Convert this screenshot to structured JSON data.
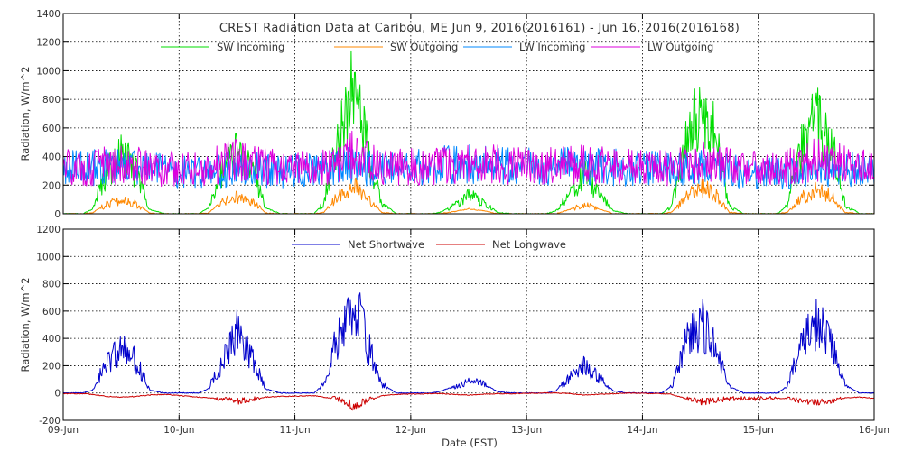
{
  "chart_data": [
    {
      "type": "line",
      "title": "CREST Radiation Data at Caribou, ME   Jun  9, 2016(2016161) - Jun 16, 2016(2016168)",
      "xlabel": "",
      "ylabel": "Radiation, W/m^2",
      "xlim": [
        "2016-06-09",
        "2016-06-16"
      ],
      "ylim": [
        0,
        1400
      ],
      "yticks": [
        "0",
        "200",
        "400",
        "600",
        "800",
        "1000",
        "1200",
        "1400"
      ],
      "xticks": [],
      "grid": true,
      "legend": "top",
      "x": [
        "2016-06-09 00:00",
        "2016-06-09 04:00",
        "2016-06-09 06:00",
        "2016-06-09 09:00",
        "2016-06-09 12:00",
        "2016-06-09 15:00",
        "2016-06-09 18:00",
        "2016-06-09 21:00",
        "2016-06-10 04:00",
        "2016-06-10 06:00",
        "2016-06-10 09:00",
        "2016-06-10 12:00",
        "2016-06-10 15:00",
        "2016-06-10 18:00",
        "2016-06-10 21:00",
        "2016-06-11 04:00",
        "2016-06-11 06:00",
        "2016-06-11 09:00",
        "2016-06-11 12:00",
        "2016-06-11 15:00",
        "2016-06-11 18:00",
        "2016-06-11 21:00",
        "2016-06-12 04:00",
        "2016-06-12 06:00",
        "2016-06-12 09:00",
        "2016-06-12 12:00",
        "2016-06-12 15:00",
        "2016-06-12 18:00",
        "2016-06-12 21:00",
        "2016-06-13 04:00",
        "2016-06-13 06:00",
        "2016-06-13 09:00",
        "2016-06-13 12:00",
        "2016-06-13 15:00",
        "2016-06-13 18:00",
        "2016-06-13 21:00",
        "2016-06-14 04:00",
        "2016-06-14 06:00",
        "2016-06-14 09:00",
        "2016-06-14 12:00",
        "2016-06-14 15:00",
        "2016-06-14 18:00",
        "2016-06-14 21:00",
        "2016-06-15 04:00",
        "2016-06-15 06:00",
        "2016-06-15 09:00",
        "2016-06-15 12:00",
        "2016-06-15 15:00",
        "2016-06-15 18:00",
        "2016-06-15 21:00",
        "2016-06-16 00:00"
      ],
      "series": [
        {
          "name": "SW Incoming",
          "color": "#00dd00",
          "values": [
            0,
            0,
            30,
            300,
            440,
            330,
            30,
            0,
            0,
            40,
            320,
            470,
            370,
            40,
            0,
            0,
            80,
            600,
            940,
            500,
            80,
            0,
            0,
            10,
            60,
            140,
            90,
            10,
            0,
            0,
            20,
            150,
            300,
            150,
            20,
            0,
            0,
            60,
            500,
            830,
            600,
            60,
            0,
            0,
            60,
            500,
            700,
            550,
            70,
            0,
            0
          ]
        },
        {
          "name": "SW Outgoing",
          "color": "#ff8800",
          "values": [
            0,
            0,
            5,
            70,
            100,
            75,
            5,
            0,
            0,
            5,
            85,
            125,
            100,
            5,
            0,
            0,
            10,
            130,
            220,
            120,
            10,
            0,
            0,
            0,
            15,
            35,
            20,
            0,
            0,
            0,
            0,
            30,
            70,
            35,
            0,
            0,
            0,
            10,
            120,
            200,
            150,
            10,
            0,
            0,
            10,
            120,
            175,
            140,
            10,
            0,
            0
          ]
        },
        {
          "name": "LW Incoming",
          "color": "#0088ff",
          "values": [
            345,
            345,
            345,
            350,
            360,
            355,
            345,
            330,
            310,
            305,
            330,
            345,
            340,
            330,
            320,
            330,
            335,
            350,
            380,
            350,
            345,
            345,
            360,
            365,
            370,
            375,
            375,
            370,
            365,
            360,
            360,
            360,
            360,
            355,
            355,
            350,
            340,
            335,
            340,
            350,
            345,
            330,
            300,
            305,
            310,
            330,
            350,
            345,
            340,
            330,
            300
          ]
        },
        {
          "name": "LW Outgoing",
          "color": "#dd00dd",
          "values": [
            350,
            345,
            345,
            365,
            380,
            370,
            350,
            340,
            340,
            340,
            380,
            410,
            395,
            360,
            345,
            345,
            350,
            400,
            455,
            410,
            360,
            355,
            360,
            360,
            370,
            385,
            380,
            370,
            365,
            360,
            360,
            365,
            375,
            370,
            360,
            350,
            345,
            345,
            370,
            400,
            395,
            370,
            345,
            345,
            350,
            380,
            410,
            400,
            370,
            350,
            340
          ]
        }
      ]
    },
    {
      "type": "line",
      "title": "",
      "xlabel": "Date (EST)",
      "ylabel": "Radiation, W/m^2",
      "xlim": [
        "2016-06-09",
        "2016-06-16"
      ],
      "ylim": [
        -200,
        1200
      ],
      "yticks": [
        "-200",
        "0",
        "200",
        "400",
        "600",
        "800",
        "1000",
        "1200"
      ],
      "xticks": [
        "09-Jun",
        "10-Jun",
        "11-Jun",
        "12-Jun",
        "13-Jun",
        "14-Jun",
        "15-Jun",
        "16-Jun"
      ],
      "grid": true,
      "legend": "top",
      "x": [
        "2016-06-09 00:00",
        "2016-06-09 04:00",
        "2016-06-09 06:00",
        "2016-06-09 09:00",
        "2016-06-09 12:00",
        "2016-06-09 15:00",
        "2016-06-09 18:00",
        "2016-06-09 21:00",
        "2016-06-10 04:00",
        "2016-06-10 06:00",
        "2016-06-10 09:00",
        "2016-06-10 12:00",
        "2016-06-10 15:00",
        "2016-06-10 18:00",
        "2016-06-10 21:00",
        "2016-06-11 04:00",
        "2016-06-11 06:00",
        "2016-06-11 09:00",
        "2016-06-11 12:00",
        "2016-06-11 15:00",
        "2016-06-11 18:00",
        "2016-06-11 21:00",
        "2016-06-12 04:00",
        "2016-06-12 06:00",
        "2016-06-12 09:00",
        "2016-06-12 12:00",
        "2016-06-12 15:00",
        "2016-06-12 18:00",
        "2016-06-12 21:00",
        "2016-06-13 04:00",
        "2016-06-13 06:00",
        "2016-06-13 09:00",
        "2016-06-13 12:00",
        "2016-06-13 15:00",
        "2016-06-13 18:00",
        "2016-06-13 21:00",
        "2016-06-14 04:00",
        "2016-06-14 06:00",
        "2016-06-14 09:00",
        "2016-06-14 12:00",
        "2016-06-14 15:00",
        "2016-06-14 18:00",
        "2016-06-14 21:00",
        "2016-06-15 04:00",
        "2016-06-15 06:00",
        "2016-06-15 09:00",
        "2016-06-15 12:00",
        "2016-06-15 15:00",
        "2016-06-15 18:00",
        "2016-06-15 21:00",
        "2016-06-16 00:00"
      ],
      "series": [
        {
          "name": "Net Shortwave",
          "color": "#0000cc",
          "values": [
            0,
            0,
            20,
            240,
            340,
            260,
            20,
            0,
            0,
            30,
            240,
            480,
            280,
            30,
            0,
            0,
            70,
            460,
            740,
            390,
            70,
            0,
            0,
            10,
            50,
            100,
            70,
            10,
            0,
            0,
            15,
            120,
            220,
            120,
            15,
            0,
            0,
            50,
            380,
            560,
            400,
            50,
            0,
            0,
            50,
            380,
            570,
            420,
            60,
            0,
            0
          ]
        },
        {
          "name": "Net Longwave",
          "color": "#cc0000",
          "values": [
            -5,
            -5,
            -10,
            -25,
            -30,
            -25,
            -15,
            -10,
            -30,
            -35,
            -45,
            -65,
            -55,
            -30,
            -25,
            -20,
            -30,
            -50,
            -100,
            -60,
            -20,
            -10,
            -5,
            -5,
            -10,
            -15,
            -10,
            -5,
            -5,
            0,
            0,
            -5,
            -15,
            -10,
            -5,
            0,
            -5,
            -10,
            -40,
            -70,
            -60,
            -45,
            -45,
            -40,
            -40,
            -60,
            -70,
            -60,
            -35,
            -30,
            -40
          ]
        }
      ]
    }
  ]
}
